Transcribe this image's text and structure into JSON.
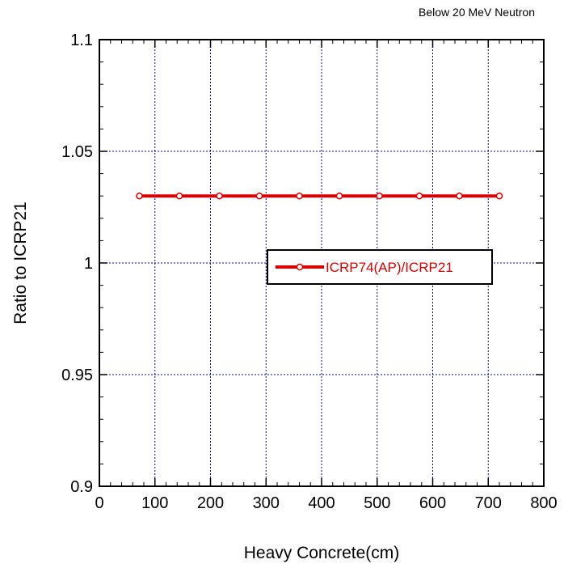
{
  "chart_data": {
    "type": "line",
    "title": "",
    "note": "Below 20 MeV Neutron",
    "xlabel": "Heavy Concrete(cm)",
    "ylabel": "Ratio to ICRP21",
    "xlim": [
      0,
      800
    ],
    "ylim": [
      0.9,
      1.1
    ],
    "x_ticks": [
      0,
      100,
      200,
      300,
      400,
      500,
      600,
      700,
      800
    ],
    "y_ticks": [
      0.9,
      0.95,
      1,
      1.05,
      1.1
    ],
    "x_tick_labels": [
      "0",
      "100",
      "200",
      "300",
      "400",
      "500",
      "600",
      "700",
      "800"
    ],
    "y_tick_labels": [
      "0.9",
      "0.95",
      "1",
      "1.05",
      "1.1"
    ],
    "grid": true,
    "legend_position": "center-right",
    "series": [
      {
        "name": "ICRP74(AP)/ICRP21",
        "color": "#dd0000",
        "marker": "open-circle",
        "x": [
          72,
          144,
          216,
          288,
          360,
          432,
          504,
          576,
          648,
          720
        ],
        "y": [
          1.03,
          1.03,
          1.03,
          1.03,
          1.03,
          1.03,
          1.03,
          1.03,
          1.03,
          1.03
        ]
      }
    ]
  }
}
